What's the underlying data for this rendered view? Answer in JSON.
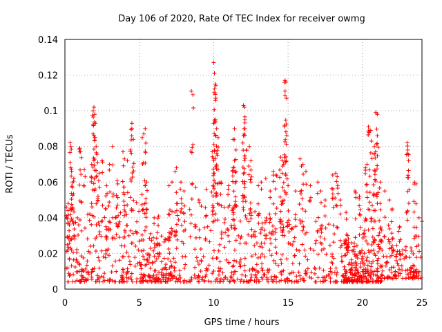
{
  "chart_data": {
    "type": "scatter",
    "title": "Day 106 of 2020, Rate Of TEC Index for receiver owmg",
    "xlabel": "GPS time / hours",
    "ylabel": "ROTI / TECUs",
    "xlim": [
      0,
      24
    ],
    "ylim": [
      0,
      0.14
    ],
    "x_ticks": [
      "0",
      "5",
      "10",
      "15",
      "20",
      "25"
    ],
    "y_ticks": [
      "0",
      "0.02",
      "0.04",
      "0.06",
      "0.08",
      "0.1",
      "0.12",
      "0.14"
    ],
    "x_tick_values": [
      0,
      5,
      10,
      15,
      20,
      25
    ],
    "y_tick_values": [
      0,
      0.02,
      0.04,
      0.06,
      0.08,
      0.1,
      0.12,
      0.14
    ],
    "grid": true,
    "marker": "+",
    "color": "#ff0000",
    "series": [
      {
        "points": [
          [
            0.1,
            0.046
          ],
          [
            0.2,
            0.044
          ],
          [
            0.3,
            0.036
          ],
          [
            0.35,
            0.082
          ],
          [
            0.4,
            0.08
          ],
          [
            0.4,
            0.068
          ],
          [
            0.45,
            0.066
          ],
          [
            0.5,
            0.057
          ],
          [
            0.6,
            0.062
          ],
          [
            1.0,
            0.079
          ],
          [
            1.05,
            0.077
          ],
          [
            1.3,
            0.067
          ],
          [
            1.8,
            0.07
          ],
          [
            1.9,
            0.087
          ],
          [
            1.9,
            0.1
          ],
          [
            1.95,
            0.102
          ],
          [
            2.0,
            0.098
          ],
          [
            2.05,
            0.093
          ],
          [
            2.0,
            0.085
          ],
          [
            2.1,
            0.08
          ],
          [
            2.2,
            0.071
          ],
          [
            2.3,
            0.065
          ],
          [
            2.5,
            0.072
          ],
          [
            2.8,
            0.058
          ],
          [
            3.2,
            0.08
          ],
          [
            3.0,
            0.07
          ],
          [
            3.5,
            0.061
          ],
          [
            3.9,
            0.077
          ],
          [
            4.0,
            0.073
          ],
          [
            4.2,
            0.072
          ],
          [
            4.4,
            0.078
          ],
          [
            4.5,
            0.093
          ],
          [
            4.5,
            0.09
          ],
          [
            4.6,
            0.084
          ],
          [
            5.2,
            0.085
          ],
          [
            5.3,
            0.087
          ],
          [
            5.4,
            0.09
          ],
          [
            5.5,
            0.06
          ],
          [
            5.4,
            0.058
          ],
          [
            6.0,
            0.04
          ],
          [
            6.3,
            0.041
          ],
          [
            7.4,
            0.066
          ],
          [
            7.5,
            0.068
          ],
          [
            7.2,
            0.06
          ],
          [
            7.0,
            0.058
          ],
          [
            7.8,
            0.06
          ],
          [
            8.0,
            0.055
          ],
          [
            8.5,
            0.111
          ],
          [
            8.6,
            0.109
          ],
          [
            8.8,
            0.057
          ],
          [
            9.0,
            0.05
          ],
          [
            9.5,
            0.056
          ],
          [
            9.9,
            0.077
          ],
          [
            10.0,
            0.127
          ],
          [
            10.05,
            0.121
          ],
          [
            10.1,
            0.115
          ],
          [
            10.1,
            0.11
          ],
          [
            10.15,
            0.107
          ],
          [
            10.0,
            0.093
          ],
          [
            10.2,
            0.09
          ],
          [
            10.3,
            0.085
          ],
          [
            10.0,
            0.073
          ],
          [
            10.0,
            0.065
          ],
          [
            10.5,
            0.06
          ],
          [
            11.0,
            0.058
          ],
          [
            11.4,
            0.09
          ],
          [
            11.3,
            0.084
          ],
          [
            11.5,
            0.078
          ],
          [
            11.4,
            0.072
          ],
          [
            11.3,
            0.068
          ],
          [
            11.5,
            0.066
          ],
          [
            12.0,
            0.103
          ],
          [
            12.05,
            0.102
          ],
          [
            12.1,
            0.095
          ],
          [
            12.1,
            0.09
          ],
          [
            12.0,
            0.086
          ],
          [
            12.2,
            0.078
          ],
          [
            12.4,
            0.08
          ],
          [
            12.5,
            0.072
          ],
          [
            12.5,
            0.06
          ],
          [
            13.0,
            0.058
          ],
          [
            13.2,
            0.06
          ],
          [
            13.5,
            0.062
          ],
          [
            13.8,
            0.055
          ],
          [
            14.0,
            0.066
          ],
          [
            14.2,
            0.064
          ],
          [
            14.5,
            0.074
          ],
          [
            14.6,
            0.072
          ],
          [
            14.8,
            0.117
          ],
          [
            14.85,
            0.116
          ],
          [
            14.8,
            0.111
          ],
          [
            14.9,
            0.107
          ],
          [
            14.7,
            0.07
          ],
          [
            14.6,
            0.065
          ],
          [
            15.0,
            0.058
          ],
          [
            15.5,
            0.055
          ],
          [
            15.8,
            0.073
          ],
          [
            15.9,
            0.069
          ],
          [
            16.0,
            0.07
          ],
          [
            16.2,
            0.066
          ],
          [
            16.5,
            0.058
          ],
          [
            17.0,
            0.06
          ],
          [
            17.2,
            0.055
          ],
          [
            17.5,
            0.05
          ],
          [
            18.0,
            0.064
          ],
          [
            18.2,
            0.065
          ],
          [
            18.3,
            0.063
          ],
          [
            18.5,
            0.05
          ],
          [
            18.9,
            0.043
          ],
          [
            19.0,
            0.03
          ],
          [
            19.5,
            0.055
          ],
          [
            19.8,
            0.052
          ],
          [
            20.2,
            0.068
          ],
          [
            20.3,
            0.07
          ],
          [
            20.4,
            0.091
          ],
          [
            20.5,
            0.089
          ],
          [
            20.6,
            0.083
          ],
          [
            20.8,
            0.08
          ],
          [
            20.9,
            0.099
          ],
          [
            21.0,
            0.098
          ],
          [
            21.0,
            0.086
          ],
          [
            20.8,
            0.076
          ],
          [
            21.2,
            0.06
          ],
          [
            21.5,
            0.055
          ],
          [
            21.8,
            0.05
          ],
          [
            22.0,
            0.045
          ],
          [
            22.5,
            0.035
          ],
          [
            23.0,
            0.082
          ],
          [
            23.05,
            0.078
          ],
          [
            23.1,
            0.072
          ],
          [
            23.5,
            0.06
          ],
          [
            23.6,
            0.059
          ],
          [
            23.8,
            0.04
          ],
          [
            24.0,
            0.038
          ]
        ],
        "baseline_bursts": [
          {
            "start": 0.0,
            "end": 5.0,
            "low": 0.004,
            "high": 0.05,
            "density": 220
          },
          {
            "start": 5.0,
            "end": 7.2,
            "low": 0.004,
            "high": 0.032,
            "density": 140
          },
          {
            "start": 7.2,
            "end": 12.8,
            "low": 0.004,
            "high": 0.048,
            "density": 200
          },
          {
            "start": 12.8,
            "end": 18.3,
            "low": 0.004,
            "high": 0.04,
            "density": 190
          },
          {
            "start": 18.6,
            "end": 19.8,
            "low": 0.004,
            "high": 0.028,
            "density": 120
          },
          {
            "start": 19.8,
            "end": 21.3,
            "low": 0.004,
            "high": 0.04,
            "density": 140
          },
          {
            "start": 21.3,
            "end": 24.0,
            "low": 0.006,
            "high": 0.025,
            "density": 110
          }
        ]
      }
    ]
  }
}
